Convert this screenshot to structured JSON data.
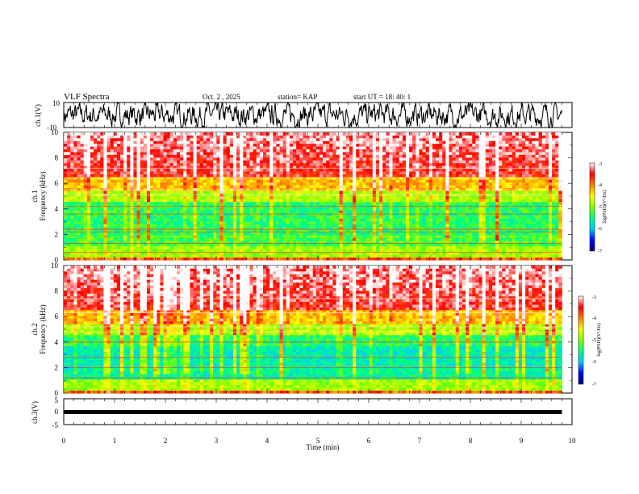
{
  "header": {
    "title": "VLF Spectra",
    "date": "Oct. 2 , 2025",
    "station": "station= KAP",
    "start_ut": "start UT = 18: 40: 1"
  },
  "chart_data": {
    "type": "heatmap",
    "title": "VLF Spectra",
    "xlabel": "Time (min)",
    "xlim": [
      0,
      10
    ],
    "x_ticks": [
      "0",
      "1",
      "2",
      "3",
      "4",
      "5",
      "6",
      "7",
      "8",
      "9",
      "10"
    ],
    "panels": [
      {
        "ylabel": "ch.1(V)",
        "type": "line",
        "ylim": [
          -10,
          10
        ],
        "y_ticks": [
          "10",
          "-10"
        ]
      },
      {
        "ylabel_top": "ch.1",
        "ylabel": "Frequency (kHz)",
        "type": "heatmap",
        "ylim": [
          0,
          10
        ],
        "y_ticks": [
          "0",
          "2",
          "4",
          "6",
          "8",
          "10"
        ],
        "data_end_min": 9.8
      },
      {
        "ylabel_top": "ch.2",
        "ylabel": "Frequency (kHz)",
        "type": "heatmap",
        "ylim": [
          0,
          10
        ],
        "y_ticks": [
          "0",
          "2",
          "4",
          "6",
          "8",
          "10"
        ],
        "data_end_min": 9.8
      },
      {
        "ylabel": "ch.3(V)",
        "type": "line",
        "ylim": [
          -5,
          5
        ],
        "y_ticks": [
          "5",
          "0",
          "-5"
        ],
        "value": 0
      }
    ],
    "colorbar": {
      "label": "log(PSD)(V²/Hz)",
      "range": [
        -7,
        -3
      ],
      "ticks": [
        "-3",
        "-4",
        "-5",
        "-6",
        "-7"
      ],
      "colors": [
        "#000080",
        "#0000ff",
        "#00c8ff",
        "#00ff80",
        "#80ff00",
        "#ffff00",
        "#ff8000",
        "#ff0000",
        "#ffffff"
      ]
    }
  }
}
